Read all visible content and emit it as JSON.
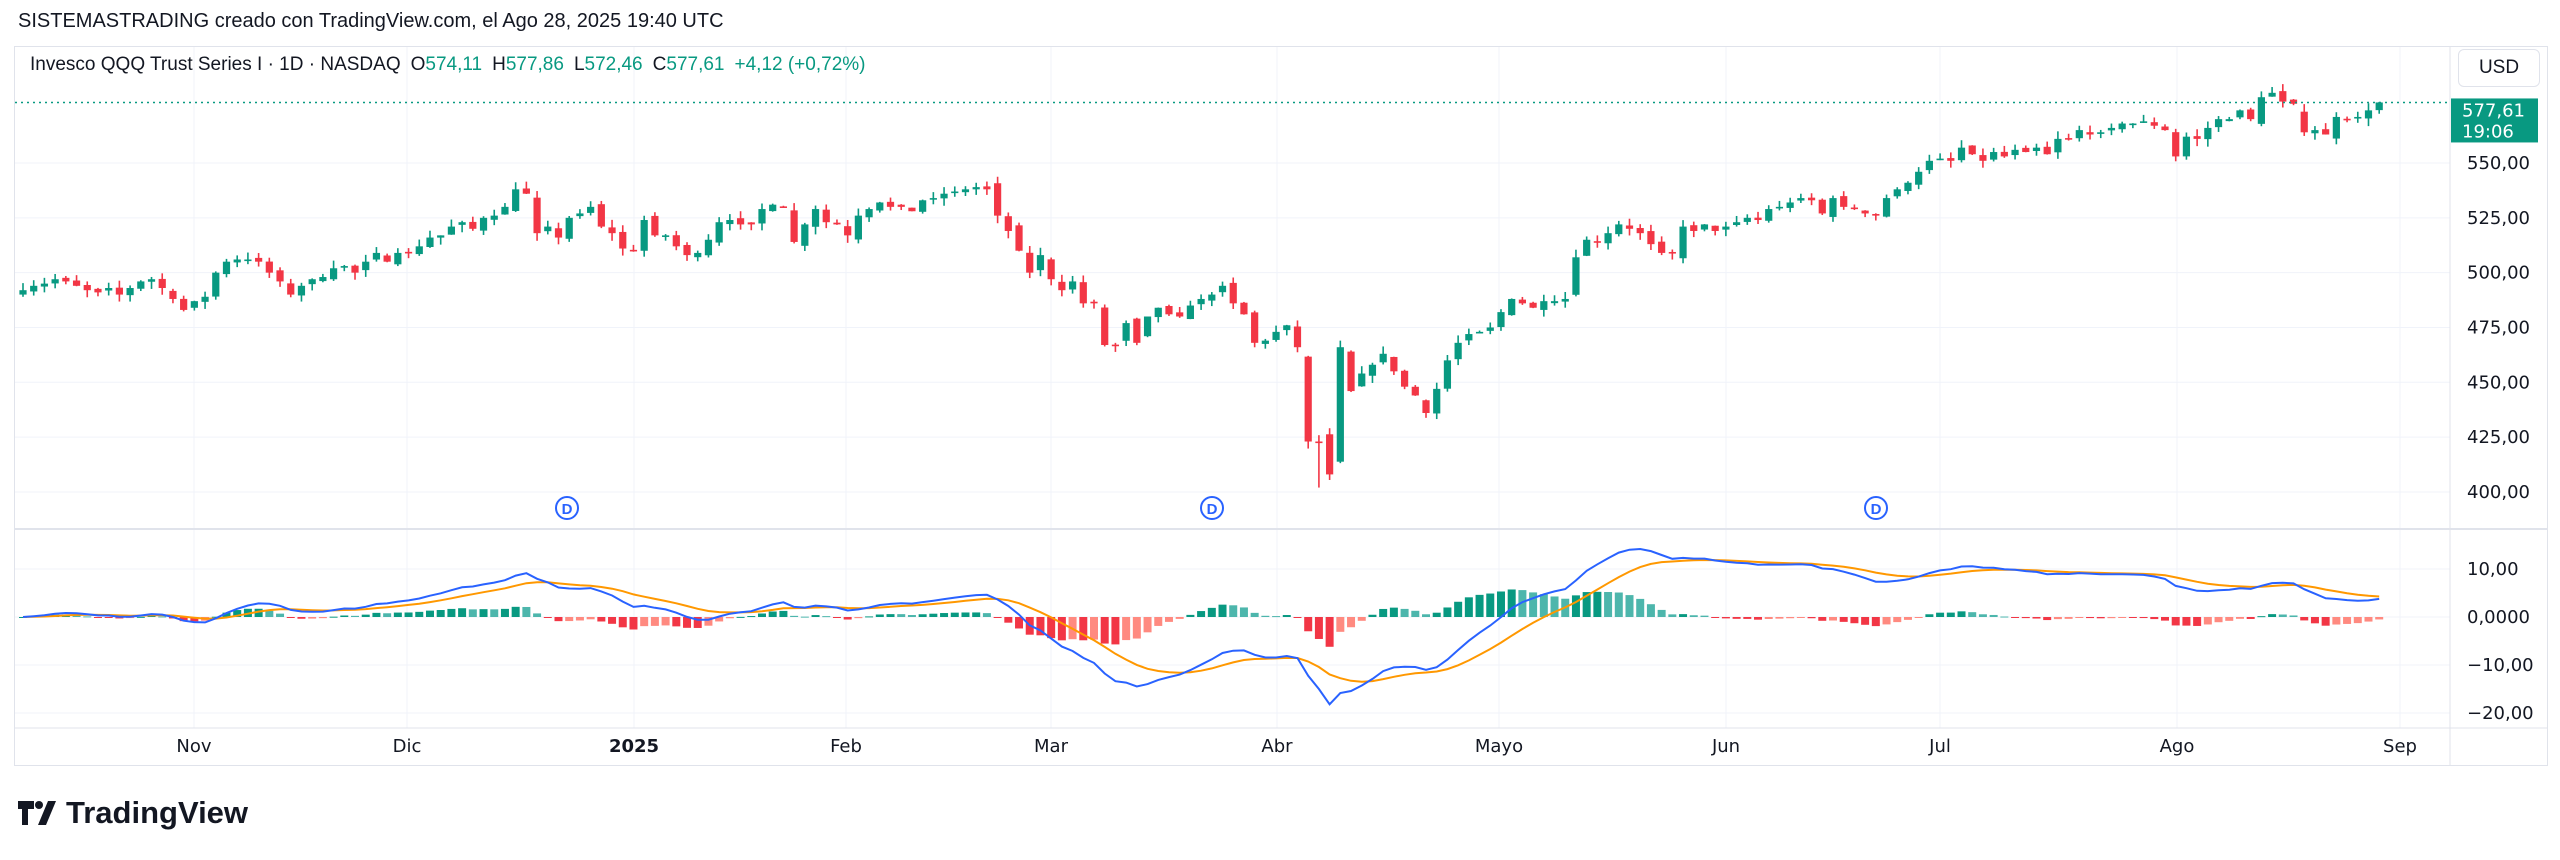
{
  "header": {
    "attribution": "SISTEMASTRADING creado con TradingView.com, el Ago 28, 2025 19:40 UTC"
  },
  "legend": {
    "symbol": "Invesco QQQ Trust Series I · 1D · NASDAQ",
    "open_label": "O",
    "open": "574,11",
    "high_label": "H",
    "high": "577,86",
    "low_label": "L",
    "low": "572,46",
    "close_label": "C",
    "close": "577,61",
    "change": "+4,12 (+0,72%)"
  },
  "currency_button": "USD",
  "last_price_tag": {
    "price": "577,61",
    "countdown": "19:06"
  },
  "logo_text": "TradingView",
  "colors": {
    "up": "#089981",
    "down": "#f23645",
    "macd": "#2962ff",
    "signal": "#ff9800",
    "dividend": "#2962ff",
    "grid": "#f0f3fa"
  },
  "dividend_marker": {
    "label": "D",
    "icon": "dividend-marker-icon"
  },
  "chart_data": [
    {
      "type": "candlestick",
      "symbol": "QQQ",
      "interval": "1D",
      "last_candle": {
        "open": 574.11,
        "high": 577.86,
        "low": 572.46,
        "close": 577.61
      },
      "closes": [
        492,
        494,
        495,
        497,
        496,
        494,
        492,
        491,
        493,
        490,
        493,
        496,
        497,
        493,
        488,
        483,
        487,
        489,
        500,
        505,
        506,
        506,
        505,
        500,
        496,
        490,
        494,
        497,
        498,
        502,
        503,
        500,
        505,
        509,
        505,
        509,
        509,
        512,
        516,
        517,
        521,
        523,
        520,
        525,
        526,
        530,
        538,
        536,
        518,
        521,
        516,
        525,
        527,
        530,
        521,
        518,
        511,
        510,
        524,
        517,
        517,
        512,
        508,
        509,
        515,
        523,
        524,
        522,
        522,
        529,
        531,
        530,
        514,
        522,
        529,
        523,
        522,
        517,
        526,
        529,
        532,
        530,
        530,
        528,
        533,
        534,
        536,
        537,
        538,
        539,
        538,
        526,
        519,
        510,
        500,
        508,
        497,
        492,
        496,
        486,
        486,
        467,
        467,
        477,
        468,
        480,
        484,
        481,
        480,
        485,
        488,
        490,
        494,
        486,
        481,
        468,
        469,
        473,
        476,
        466,
        423,
        423,
        408,
        466,
        446,
        454,
        458,
        463,
        455,
        448,
        444,
        436,
        447,
        460,
        468,
        472,
        473,
        475,
        482,
        488,
        486,
        484,
        487,
        487,
        488,
        507,
        515,
        514,
        518,
        522,
        520,
        518,
        513,
        509,
        509,
        521,
        519,
        522,
        519,
        521,
        523,
        525,
        524,
        529,
        530,
        532,
        534,
        533,
        527,
        534,
        530,
        529,
        527,
        526,
        534,
        538,
        541,
        546,
        551,
        552,
        551,
        557,
        554,
        551,
        555,
        553,
        556,
        555,
        557,
        554,
        561,
        561,
        565,
        563,
        564,
        566,
        568,
        568,
        569,
        567,
        565,
        553,
        562,
        561,
        566,
        570,
        570,
        574,
        570,
        580,
        582,
        578,
        577,
        564,
        565,
        563,
        571,
        570,
        571,
        574,
        577.61
      ],
      "y_ticks": [
        "550,00",
        "525,00",
        "500,00",
        "475,00",
        "450,00",
        "425,00",
        "400,00"
      ],
      "y_tick_values": [
        550,
        525,
        500,
        475,
        450,
        425,
        400
      ],
      "x_ticks": [
        "Nov",
        "Dic",
        "2025",
        "Feb",
        "Mar",
        "Abr",
        "Mayo",
        "Jun",
        "Jul",
        "Ago",
        "Sep"
      ],
      "grid": true
    },
    {
      "type": "line+histogram",
      "indicator": "MACD",
      "y_ticks": [
        "10,00",
        "0,0000",
        "−10,00",
        "−20,00"
      ],
      "y_tick_values": [
        10,
        0,
        -10,
        -20
      ]
    }
  ]
}
